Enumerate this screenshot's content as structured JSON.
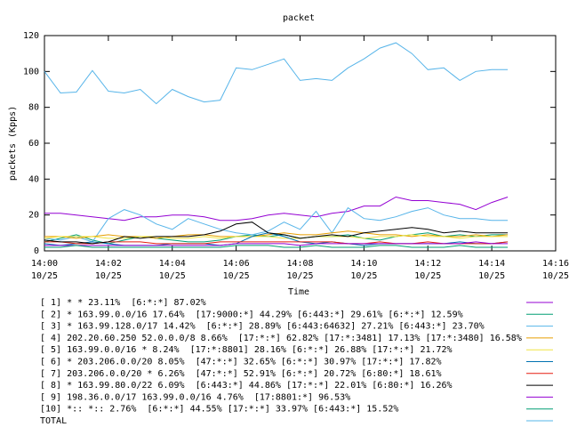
{
  "chart_data": {
    "type": "line",
    "title": "packet",
    "xlabel": "Time",
    "ylabel": "packets (Kpps)",
    "x": [
      "14:00:00",
      "14:00:30",
      "14:01:00",
      "14:01:30",
      "14:02:00",
      "14:02:30",
      "14:03:00",
      "14:03:30",
      "14:04:00",
      "14:04:30",
      "14:05:00",
      "14:05:30",
      "14:06:00",
      "14:06:30",
      "14:07:00",
      "14:07:30",
      "14:08:00",
      "14:08:30",
      "14:09:00",
      "14:09:30",
      "14:10:00",
      "14:10:30",
      "14:11:00",
      "14:11:30",
      "14:12:00",
      "14:12:30",
      "14:13:00",
      "14:13:30",
      "14:14:00",
      "14:14:30"
    ],
    "xlim": [
      "14:00:00",
      "14:16:00"
    ],
    "xticks": [
      {
        "value": "14:00:00",
        "label": [
          "14:00",
          "10/25"
        ]
      },
      {
        "value": "14:02:00",
        "label": [
          "14:02",
          "10/25"
        ]
      },
      {
        "value": "14:04:00",
        "label": [
          "14:04",
          "10/25"
        ]
      },
      {
        "value": "14:06:00",
        "label": [
          "14:06",
          "10/25"
        ]
      },
      {
        "value": "14:08:00",
        "label": [
          "14:08",
          "10/25"
        ]
      },
      {
        "value": "14:10:00",
        "label": [
          "14:10",
          "10/25"
        ]
      },
      {
        "value": "14:12:00",
        "label": [
          "14:12",
          "10/25"
        ]
      },
      {
        "value": "14:14:00",
        "label": [
          "14:14",
          "10/25"
        ]
      },
      {
        "value": "14:16:00",
        "label": [
          "14:16",
          "10/25"
        ]
      }
    ],
    "ylim": [
      0,
      120
    ],
    "yticks": [
      0,
      20,
      40,
      60,
      80,
      100,
      120
    ],
    "grid": false,
    "series": [
      {
        "name": "[ 1] * * 23.11%  [6:*:*] 87.02%",
        "color": "#9400d3",
        "values": [
          21,
          21,
          20,
          19,
          18,
          17,
          19,
          19,
          20,
          20,
          19,
          17,
          17,
          18,
          20,
          21,
          20,
          19,
          21,
          22,
          25,
          25,
          30,
          28,
          28,
          27,
          26,
          23,
          27,
          30
        ]
      },
      {
        "name": "[ 2] * 163.99.0.0/16 17.64%  [17:9000:*] 44.29% [6:443:*] 29.61% [6:*:*] 12.59%",
        "color": "#009e73",
        "values": [
          5,
          7,
          9,
          6,
          4,
          6,
          8,
          7,
          6,
          5,
          5,
          6,
          8,
          9,
          8,
          9,
          7,
          8,
          8,
          9,
          7,
          6,
          8,
          9,
          10,
          8,
          9,
          8,
          9,
          9
        ]
      },
      {
        "name": "[ 3] * 163.99.128.0/17 14.42%  [6:*:*] 28.89% [6:443:64632] 27.21% [6:443:*] 23.70%",
        "color": "#56b4e9",
        "values": [
          7,
          6,
          8,
          5,
          18,
          23,
          20,
          15,
          12,
          18,
          15,
          12,
          10,
          9,
          11,
          16,
          12,
          22,
          10,
          24,
          18,
          17,
          19,
          22,
          24,
          20,
          18,
          18,
          17,
          17
        ]
      },
      {
        "name": "[ 4] 202.20.60.250 52.0.0.0/8 8.66%  [17:*:*] 62.82% [17:*:3481] 17.13% [17:*:3480] 16.58%",
        "color": "#e69f00",
        "values": [
          8,
          8,
          7,
          8,
          9,
          8,
          8,
          7,
          8,
          9,
          9,
          8,
          8,
          8,
          9,
          10,
          9,
          9,
          10,
          11,
          10,
          9,
          9,
          8,
          9,
          8,
          8,
          9,
          8,
          9
        ]
      },
      {
        "name": "[ 5] 163.99.0.0/16 * 8.24%  [17:*:8801] 28.16% [6:*:*] 26.88% [17:*:*] 21.72%",
        "color": "#f0e442",
        "values": [
          7,
          8,
          8,
          8,
          7,
          7,
          8,
          8,
          7,
          7,
          8,
          7,
          8,
          8,
          8,
          7,
          7,
          8,
          8,
          8,
          7,
          8,
          8,
          9,
          8,
          8,
          7,
          8,
          8,
          8
        ]
      },
      {
        "name": "[ 6] * 203.206.0.0/20 8.05%  [47:*:*] 32.65% [6:*:*] 30.97% [17:*:*] 17.82%",
        "color": "#0072b2",
        "values": [
          4,
          3,
          4,
          5,
          4,
          3,
          3,
          3,
          4,
          4,
          4,
          3,
          4,
          8,
          10,
          8,
          5,
          4,
          5,
          4,
          3,
          4,
          4,
          4,
          4,
          4,
          5,
          4,
          4,
          5
        ]
      },
      {
        "name": "[ 7] 203.206.0.0/20 * 6.26%  [47:*:*] 52.91% [6:*:*] 20.72% [6:80:*] 18.61%",
        "color": "#e51e10",
        "values": [
          5,
          5,
          4,
          4,
          5,
          5,
          5,
          4,
          4,
          4,
          4,
          5,
          5,
          5,
          5,
          5,
          5,
          5,
          5,
          4,
          4,
          5,
          4,
          4,
          5,
          4,
          4,
          4,
          4,
          5
        ]
      },
      {
        "name": "[ 8] * 163.99.80.0/22 6.09%  [6:443:*] 44.86% [17:*:*] 22.01% [6:80:*] 16.26%",
        "color": "#000000",
        "values": [
          6,
          5,
          5,
          4,
          5,
          8,
          7,
          8,
          8,
          8,
          9,
          11,
          15,
          16,
          10,
          9,
          7,
          8,
          9,
          8,
          10,
          11,
          12,
          13,
          12,
          10,
          11,
          10,
          10,
          10
        ]
      },
      {
        "name": "[ 9] 198.36.0.0/17 163.99.0.0/16 4.76%  [17:8801:*] 96.53%",
        "color": "#9400d3",
        "values": [
          3,
          3,
          3,
          3,
          3,
          3,
          3,
          3,
          3,
          3,
          3,
          3,
          4,
          4,
          4,
          4,
          3,
          4,
          4,
          4,
          4,
          4,
          4,
          4,
          4,
          4,
          4,
          5,
          4,
          4
        ]
      },
      {
        "name": "[10] *:: *:: 2.76%  [6:*:*] 44.55% [17:*:*] 33.97% [6:443:*] 15.52%",
        "color": "#009e73",
        "values": [
          2,
          2,
          3,
          2,
          2,
          2,
          2,
          2,
          2,
          2,
          2,
          2,
          3,
          3,
          3,
          2,
          2,
          3,
          2,
          2,
          2,
          3,
          3,
          2,
          2,
          2,
          3,
          2,
          2,
          2
        ]
      },
      {
        "name": "TOTAL",
        "color": "#56b4e9",
        "values": [
          100,
          88,
          88.5,
          100.5,
          89,
          88,
          90,
          82,
          90,
          86,
          83,
          84,
          102,
          101,
          104,
          107,
          95,
          96,
          95,
          102,
          107,
          113,
          116,
          110,
          101,
          102,
          95,
          100,
          101,
          101
        ]
      }
    ]
  }
}
